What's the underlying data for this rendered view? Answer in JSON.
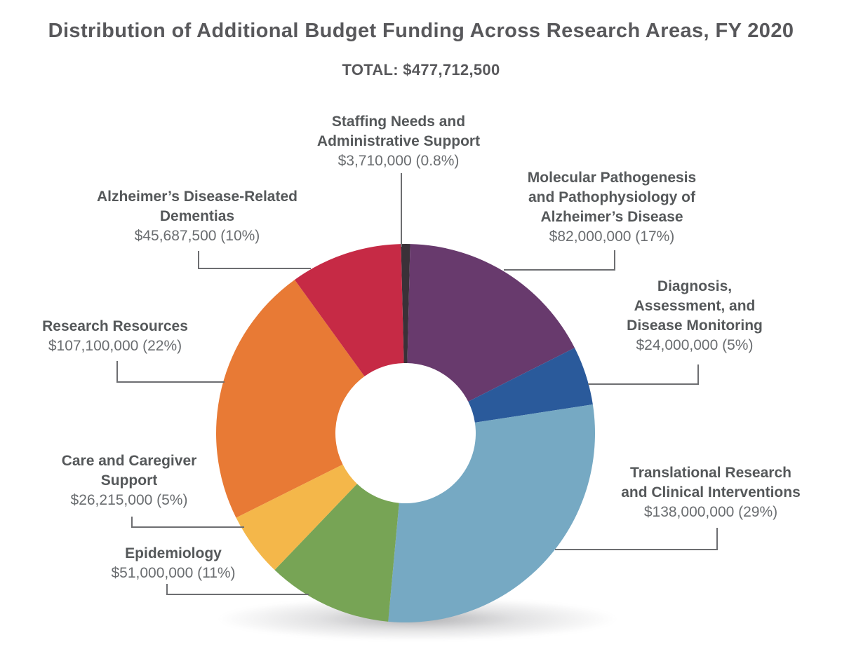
{
  "title": "Distribution of Additional Budget Funding Across Research Areas, FY 2020",
  "total_label": "TOTAL: $477,712,500",
  "chart_data": {
    "type": "pie",
    "donut": true,
    "title": "Distribution of Additional Budget Funding Across Research Areas, FY 2020",
    "subtitle": "TOTAL: $477,712,500",
    "total": 477712500,
    "start_angle_deg": -1.4,
    "direction": "clockwise-from-top",
    "leader_line_color": "#6d6e71",
    "label_name_color": "#55585a",
    "label_value_color": "#6a6d70",
    "segments": [
      {
        "key": "staffing",
        "label": "Staffing Needs and Administrative Support",
        "label_lines": [
          "Staffing Needs and",
          "Administrative Support"
        ],
        "value": 3710000,
        "display_value": "$3,710,000 (0.8%)",
        "percent": "0.8%",
        "color": "#3a3138"
      },
      {
        "key": "molecular",
        "label": "Molecular Pathogenesis and Pathophysiology of Alzheimer’s Disease",
        "label_lines": [
          "Molecular Pathogenesis",
          "and Pathophysiology of",
          "Alzheimer’s Disease"
        ],
        "value": 82000000,
        "display_value": "$82,000,000 (17%)",
        "percent": "17%",
        "color": "#683a6d"
      },
      {
        "key": "diagnosis",
        "label": "Diagnosis, Assessment, and Disease Monitoring",
        "label_lines": [
          "Diagnosis,",
          "Assessment, and",
          "Disease Monitoring"
        ],
        "value": 24000000,
        "display_value": "$24,000,000 (5%)",
        "percent": "5%",
        "color": "#2a5a9b"
      },
      {
        "key": "translational",
        "label": "Translational Research and Clinical Interventions",
        "label_lines": [
          "Translational Research",
          "and Clinical Interventions"
        ],
        "value": 138000000,
        "display_value": "$138,000,000 (29%)",
        "percent": "29%",
        "color": "#76a9c3"
      },
      {
        "key": "epidemiology",
        "label": "Epidemiology",
        "label_lines": [
          "Epidemiology"
        ],
        "value": 51000000,
        "display_value": "$51,000,000 (11%)",
        "percent": "11%",
        "color": "#77a455"
      },
      {
        "key": "care",
        "label": "Care and Caregiver Support",
        "label_lines": [
          "Care and Caregiver",
          "Support"
        ],
        "value": 26215000,
        "display_value": "$26,215,000 (5%)",
        "percent": "5%",
        "color": "#f4b74a"
      },
      {
        "key": "research",
        "label": "Research Resources",
        "label_lines": [
          "Research Resources"
        ],
        "value": 107100000,
        "display_value": "$107,100,000 (22%)",
        "percent": "22%",
        "color": "#e87a35"
      },
      {
        "key": "adrd",
        "label": "Alzheimer’s Disease-Related Dementias",
        "label_lines": [
          "Alzheimer’s Disease-Related",
          "Dementias"
        ],
        "value": 45687500,
        "display_value": "$45,687,500 (10%)",
        "percent": "10%",
        "color": "#c62a45"
      }
    ]
  }
}
